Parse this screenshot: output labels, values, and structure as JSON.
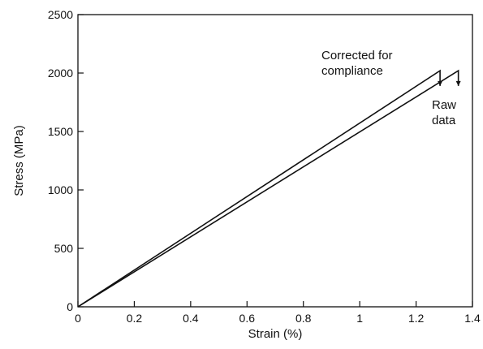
{
  "chart_data": {
    "type": "line",
    "title": "",
    "xlabel": "Strain (%)",
    "ylabel": "Stress (MPa)",
    "xlim": [
      0,
      1.4
    ],
    "ylim": [
      0,
      2500
    ],
    "xticks": [
      0,
      0.2,
      0.4,
      0.6,
      0.8,
      1,
      1.2,
      1.4
    ],
    "xtick_labels": [
      "0",
      "0.2",
      "0.4",
      "0.6",
      "0.8",
      "1",
      "1.2",
      "1.4"
    ],
    "yticks": [
      0,
      500,
      1000,
      1500,
      2000,
      2500
    ],
    "ytick_labels": [
      "0",
      "500",
      "1000",
      "1500",
      "2000",
      "2500"
    ],
    "grid": false,
    "legend": "none",
    "series": [
      {
        "name": "Corrected for compliance",
        "x": [
          0,
          1.285,
          1.285
        ],
        "y": [
          0,
          2020,
          1890
        ]
      },
      {
        "name": "Raw data",
        "x": [
          0,
          1.35,
          1.35
        ],
        "y": [
          0,
          2020,
          1890
        ]
      }
    ],
    "annotations": [
      {
        "lines": [
          "Corrected for",
          "compliance"
        ]
      },
      {
        "lines": [
          "Raw",
          "data"
        ]
      }
    ],
    "colors": {
      "line": "#111111",
      "axis": "#111111"
    }
  }
}
